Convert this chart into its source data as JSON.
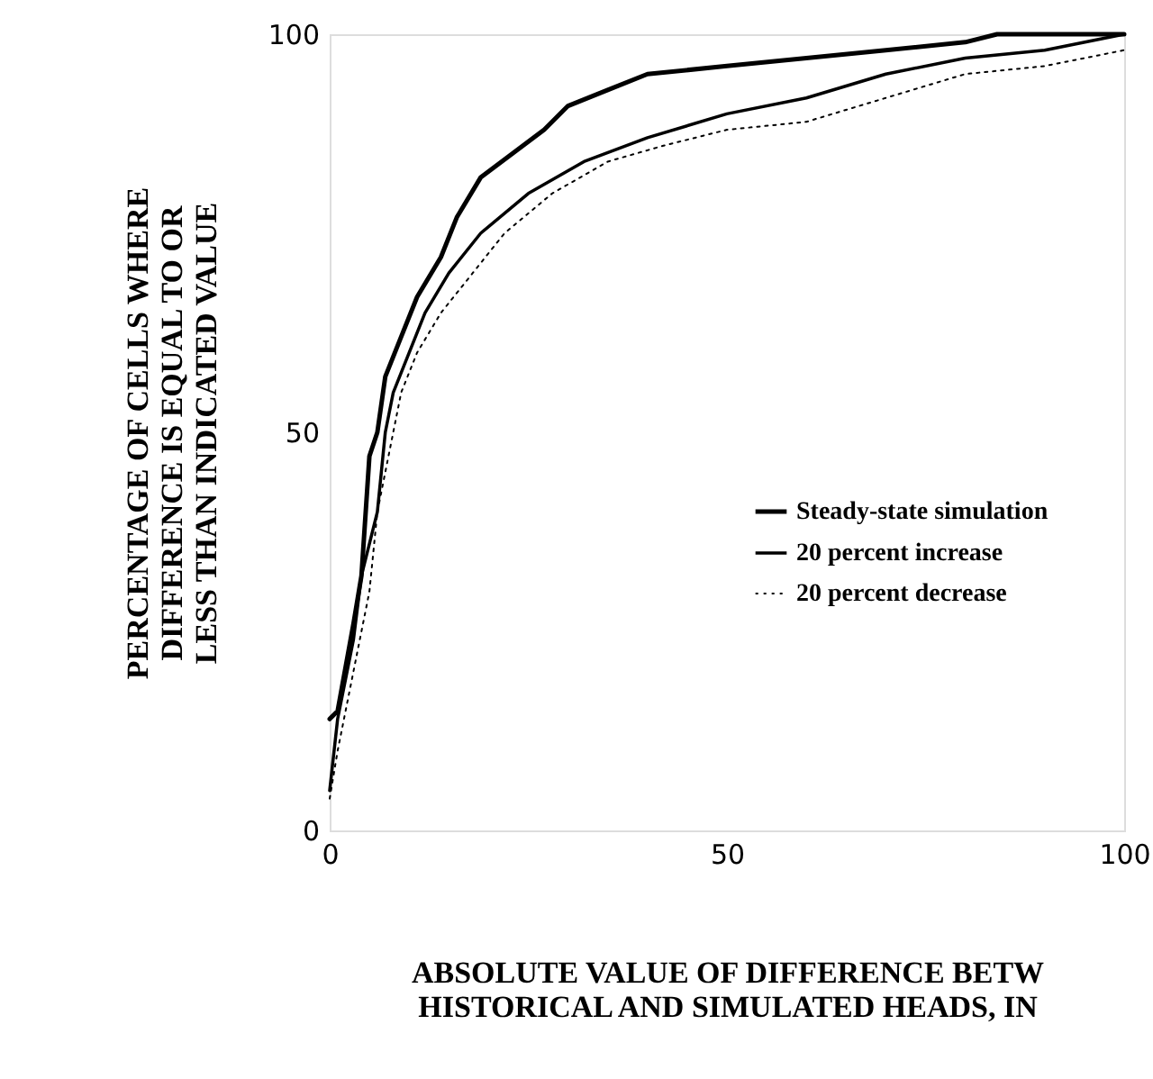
{
  "chart_data": {
    "type": "line",
    "xlabel": "ABSOLUTE VALUE OF DIFFERENCE BETW\nHISTORICAL AND SIMULATED HEADS, IN",
    "ylabel": "PERCENTAGE OF CELLS WHERE\nDIFFERENCE IS EQUAL TO OR\nLESS THAN INDICATED VALUE",
    "xlim": [
      0,
      100
    ],
    "ylim": [
      0,
      100
    ],
    "xticks": [
      0,
      50,
      100
    ],
    "yticks": [
      0,
      50,
      100
    ],
    "grid": false,
    "legend": "right",
    "marker": "none",
    "series": [
      {
        "name": "Steady-state simulation",
        "color": "#000000",
        "line_style": "solid",
        "x": [
          0,
          1,
          3,
          4,
          5,
          6,
          7,
          9,
          11,
          14,
          16,
          19,
          23,
          27,
          30,
          35,
          40,
          50,
          60,
          70,
          80,
          84,
          100
        ],
        "values": [
          14,
          15,
          26,
          32,
          47,
          50,
          57,
          62,
          67,
          72,
          77,
          82,
          85,
          88,
          91,
          93,
          95,
          96,
          97,
          98,
          99,
          100,
          100
        ]
      },
      {
        "name": "20 percent increase",
        "color": "#000000",
        "line_style": "solid",
        "x": [
          0,
          1,
          3,
          4,
          6,
          7,
          8,
          10,
          12,
          15,
          19,
          25,
          32,
          40,
          50,
          60,
          70,
          80,
          90,
          100
        ],
        "values": [
          5,
          14,
          24,
          32,
          40,
          50,
          55,
          60,
          65,
          70,
          75,
          80,
          84,
          87,
          90,
          92,
          95,
          97,
          98,
          100
        ]
      },
      {
        "name": "20 percent decrease",
        "color": "#000000",
        "line_style": "dotted",
        "x": [
          0,
          1,
          3,
          5,
          6,
          8,
          9,
          11,
          14,
          18,
          22,
          28,
          35,
          42,
          50,
          60,
          70,
          80,
          90,
          100
        ],
        "values": [
          4,
          10,
          20,
          30,
          40,
          50,
          55,
          60,
          65,
          70,
          75,
          80,
          84,
          86,
          88,
          89,
          92,
          95,
          96,
          98
        ]
      }
    ]
  }
}
